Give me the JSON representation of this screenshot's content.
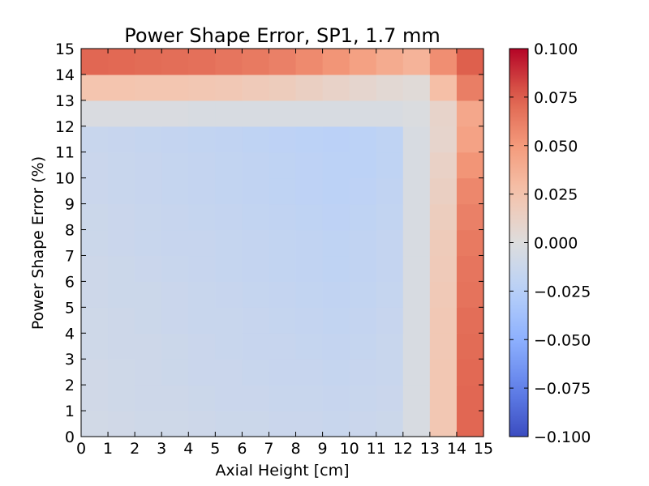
{
  "chart_data": {
    "type": "heatmap",
    "title": "Power Shape Error, SP1, 1.7 mm",
    "xlabel": "Axial Height [cm]",
    "ylabel": "Power Shape Error (%)",
    "x_ticks": [
      0,
      1,
      2,
      3,
      4,
      5,
      6,
      7,
      8,
      9,
      10,
      11,
      12,
      13,
      14,
      15
    ],
    "y_ticks": [
      0,
      1,
      2,
      3,
      4,
      5,
      6,
      7,
      8,
      9,
      10,
      11,
      12,
      13,
      14,
      15
    ],
    "xlim": [
      0,
      15
    ],
    "ylim": [
      0,
      15
    ],
    "colormap": "coolwarm",
    "clim": [
      -0.1,
      0.1
    ],
    "colorbar_ticks": [
      "0.100",
      "0.075",
      "0.050",
      "0.025",
      "0.000",
      "−0.025",
      "−0.050",
      "−0.075",
      "−0.100"
    ],
    "colorbar_tick_values": [
      0.1,
      0.075,
      0.05,
      0.025,
      0.0,
      -0.025,
      -0.05,
      -0.075,
      -0.1
    ],
    "note_rows": "values rows listed from y=0 (bottom) to y=14 (top); columns x=0..14",
    "values": [
      [
        -0.008,
        -0.009,
        -0.01,
        -0.01,
        -0.011,
        -0.012,
        -0.012,
        -0.013,
        -0.013,
        -0.014,
        -0.013,
        -0.012,
        -0.004,
        0.022,
        0.072
      ],
      [
        -0.009,
        -0.01,
        -0.011,
        -0.011,
        -0.012,
        -0.013,
        -0.013,
        -0.014,
        -0.014,
        -0.015,
        -0.014,
        -0.013,
        -0.004,
        0.022,
        0.072
      ],
      [
        -0.009,
        -0.01,
        -0.011,
        -0.012,
        -0.013,
        -0.013,
        -0.014,
        -0.015,
        -0.015,
        -0.016,
        -0.015,
        -0.014,
        -0.004,
        0.022,
        0.071
      ],
      [
        -0.01,
        -0.011,
        -0.011,
        -0.012,
        -0.013,
        -0.014,
        -0.015,
        -0.015,
        -0.016,
        -0.017,
        -0.016,
        -0.014,
        -0.004,
        0.021,
        0.07
      ],
      [
        -0.01,
        -0.011,
        -0.012,
        -0.013,
        -0.014,
        -0.014,
        -0.015,
        -0.016,
        -0.017,
        -0.018,
        -0.017,
        -0.015,
        -0.004,
        0.021,
        0.069
      ],
      [
        -0.011,
        -0.012,
        -0.012,
        -0.013,
        -0.014,
        -0.015,
        -0.016,
        -0.017,
        -0.018,
        -0.019,
        -0.018,
        -0.016,
        -0.004,
        0.02,
        0.067
      ],
      [
        -0.011,
        -0.012,
        -0.013,
        -0.014,
        -0.015,
        -0.016,
        -0.017,
        -0.018,
        -0.019,
        -0.02,
        -0.019,
        -0.017,
        -0.004,
        0.019,
        0.066
      ],
      [
        -0.012,
        -0.013,
        -0.014,
        -0.015,
        -0.015,
        -0.016,
        -0.017,
        -0.018,
        -0.019,
        -0.02,
        -0.019,
        -0.017,
        -0.004,
        0.018,
        0.064
      ],
      [
        -0.012,
        -0.013,
        -0.014,
        -0.015,
        -0.016,
        -0.017,
        -0.018,
        -0.019,
        -0.02,
        -0.021,
        -0.02,
        -0.018,
        -0.004,
        0.016,
        0.061
      ],
      [
        -0.013,
        -0.014,
        -0.015,
        -0.016,
        -0.017,
        -0.018,
        -0.019,
        -0.02,
        -0.021,
        -0.022,
        -0.021,
        -0.019,
        -0.004,
        0.014,
        0.058
      ],
      [
        -0.013,
        -0.014,
        -0.015,
        -0.016,
        -0.017,
        -0.018,
        -0.019,
        -0.02,
        -0.021,
        -0.022,
        -0.022,
        -0.02,
        -0.004,
        0.012,
        0.052
      ],
      [
        -0.014,
        -0.015,
        -0.016,
        -0.017,
        -0.018,
        -0.019,
        -0.02,
        -0.021,
        -0.022,
        -0.023,
        -0.022,
        -0.02,
        -0.004,
        0.009,
        0.045
      ],
      [
        -0.003,
        -0.003,
        -0.003,
        -0.003,
        -0.004,
        -0.004,
        -0.004,
        -0.004,
        -0.004,
        -0.004,
        -0.004,
        -0.004,
        -0.002,
        0.01,
        0.042
      ],
      [
        0.024,
        0.024,
        0.023,
        0.023,
        0.022,
        0.021,
        0.019,
        0.017,
        0.014,
        0.011,
        0.008,
        0.005,
        0.003,
        0.028,
        0.062
      ],
      [
        0.072,
        0.071,
        0.07,
        0.069,
        0.068,
        0.066,
        0.064,
        0.061,
        0.057,
        0.052,
        0.046,
        0.04,
        0.035,
        0.055,
        0.075
      ]
    ]
  }
}
